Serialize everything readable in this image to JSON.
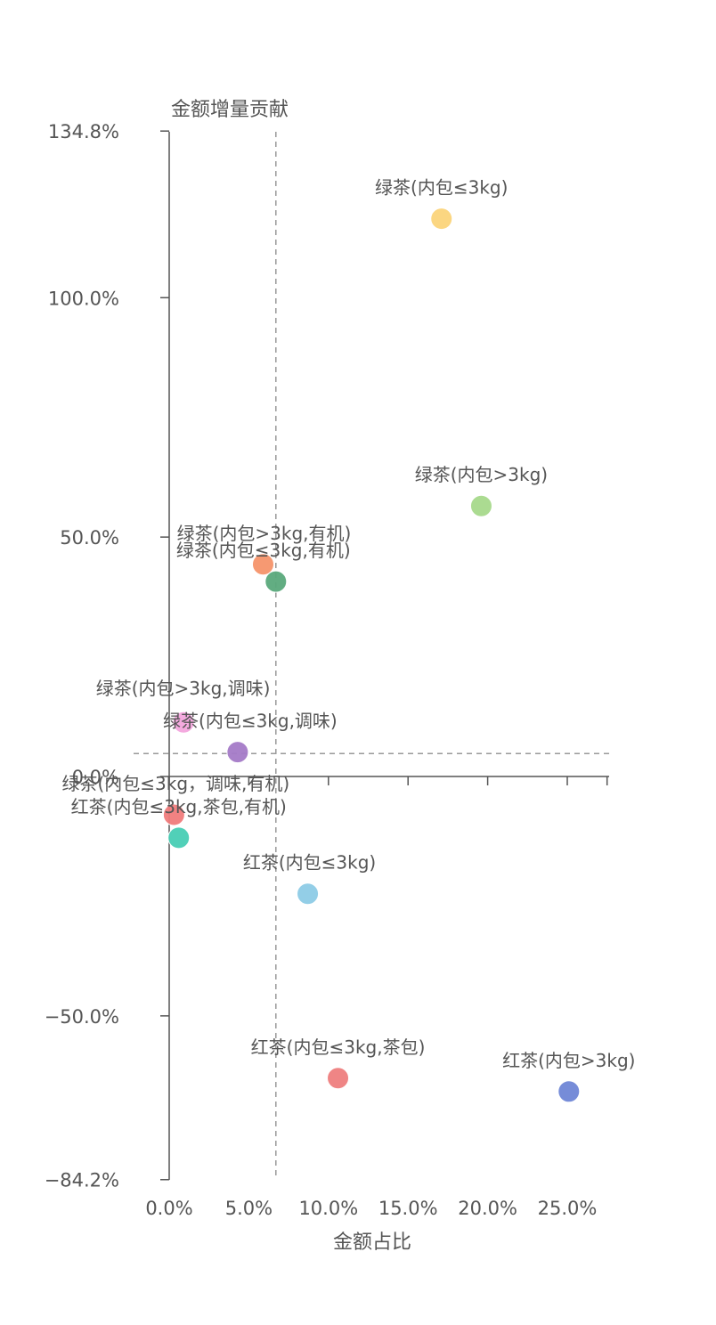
{
  "chart_data": {
    "type": "scatter",
    "title": "",
    "xlabel": "金额占比",
    "ylabel": "金额增量贡献",
    "xlim": [
      -0.02,
      0.275
    ],
    "ylim": [
      -84.2,
      134.8
    ],
    "x_ticks": [
      0,
      5,
      10,
      15,
      20,
      25
    ],
    "x_tick_labels": [
      "0.0%",
      "5.0%",
      "10.0%",
      "15.0%",
      "20.0%",
      "25.0%"
    ],
    "y_ticks": [
      134.8,
      100,
      50,
      0,
      -50,
      -84.2
    ],
    "y_tick_labels": [
      "134.8%",
      "100.0%",
      "50.0%",
      "0.0%",
      "−50.0%",
      "−84.2%"
    ],
    "reference_lines": {
      "x": 0.067,
      "y": 4.8
    },
    "grid": false,
    "points": [
      {
        "label": "绿茶(内包≤3kg)",
        "x": 0.171,
        "y": 116.5,
        "color": "#fbd47a"
      },
      {
        "label": "绿茶(内包>3kg)",
        "x": 0.196,
        "y": 56.5,
        "color": "#a6d98b"
      },
      {
        "label": "绿茶(内包>3kg,有机)",
        "x": 0.059,
        "y": 44.3,
        "color": "#f6946a"
      },
      {
        "label": "绿茶(内包≤3kg,有机)",
        "x": 0.067,
        "y": 40.7,
        "color": "#5aa97b"
      },
      {
        "label": "绿茶(内包>3kg,调味)",
        "x": 0.009,
        "y": 11.3,
        "color": "#f3a5dd"
      },
      {
        "label": "绿茶(内包≤3kg,调味)",
        "x": 0.043,
        "y": 5.1,
        "color": "#a47ac7"
      },
      {
        "label": "绿茶(内包≤3kg，调味,有机)",
        "x": 0.003,
        "y": -8.0,
        "color": "#f07b7b"
      },
      {
        "label": "红茶(内包≤3kg,茶包,有机)",
        "x": 0.006,
        "y": -12.8,
        "color": "#48cdb4"
      },
      {
        "label": "红茶(内包≤3kg)",
        "x": 0.087,
        "y": -24.5,
        "color": "#8dcbe6"
      },
      {
        "label": "红茶(内包≤3kg,茶包)",
        "x": 0.106,
        "y": -63.0,
        "color": "#ee7e7e"
      },
      {
        "label": "红茶(内包>3kg)",
        "x": 0.251,
        "y": -65.8,
        "color": "#6f86d6"
      }
    ]
  }
}
